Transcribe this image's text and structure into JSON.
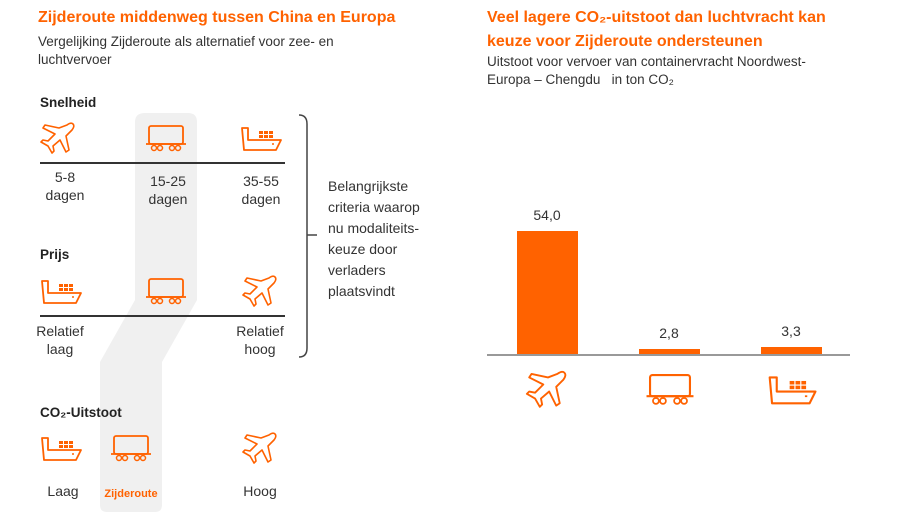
{
  "left": {
    "title": "Zijderoute middenweg tussen China en Europa",
    "subtitle_1": "Vergelijking Zijderoute als alternatief voor zee- en",
    "subtitle_2": "luchtvervoer",
    "sections": [
      {
        "header": "Snelheid",
        "icons": [
          "plane-icon",
          "train-icon",
          "ship-icon"
        ],
        "values": [
          [
            "5-8",
            "dagen"
          ],
          [
            "15-25",
            "dagen"
          ],
          [
            "35-55",
            "dagen"
          ]
        ]
      },
      {
        "header": "Prijs",
        "icons": [
          "ship-icon",
          "train-icon",
          "plane-icon"
        ],
        "values": [
          [
            "Relatief",
            "laag"
          ],
          [
            "Relatief",
            "hoog"
          ]
        ]
      },
      {
        "header": "CO₂-Uitstoot",
        "icons": [
          "ship-icon",
          "train-icon",
          "plane-icon"
        ],
        "values": [
          "Laag",
          "Hoog"
        ],
        "highlight": "Zijderoute"
      }
    ],
    "criteria": [
      "Belangrijkste",
      "criteria waarop",
      "nu modaliteits-",
      "keuze door",
      "verladers",
      "plaatsvindt"
    ]
  },
  "right": {
    "title_1": "Veel lagere CO₂-uitstoot dan luchtvracht kan",
    "title_2": "keuze voor Zijderoute ondersteunen",
    "subtitle_1": "Uitstoot voor vervoer van containervracht Noordwest-",
    "subtitle_2": "Europa – Chengdu   in ton CO₂"
  },
  "chart_data": {
    "type": "bar",
    "categories": [
      "plane-icon",
      "train-icon",
      "ship-icon"
    ],
    "values": [
      54.0,
      2.8,
      3.3
    ],
    "labels": [
      "54,0",
      "2,8",
      "3,3"
    ],
    "title": "Veel lagere CO₂-uitstoot dan luchtvracht kan keuze voor Zijderoute ondersteunen",
    "ylabel": "in ton CO₂",
    "ylim": [
      0,
      60
    ],
    "grid": false,
    "color": "#ff6200"
  },
  "colors": {
    "accent": "#ff6200",
    "highlight": "#f0f0f0"
  }
}
